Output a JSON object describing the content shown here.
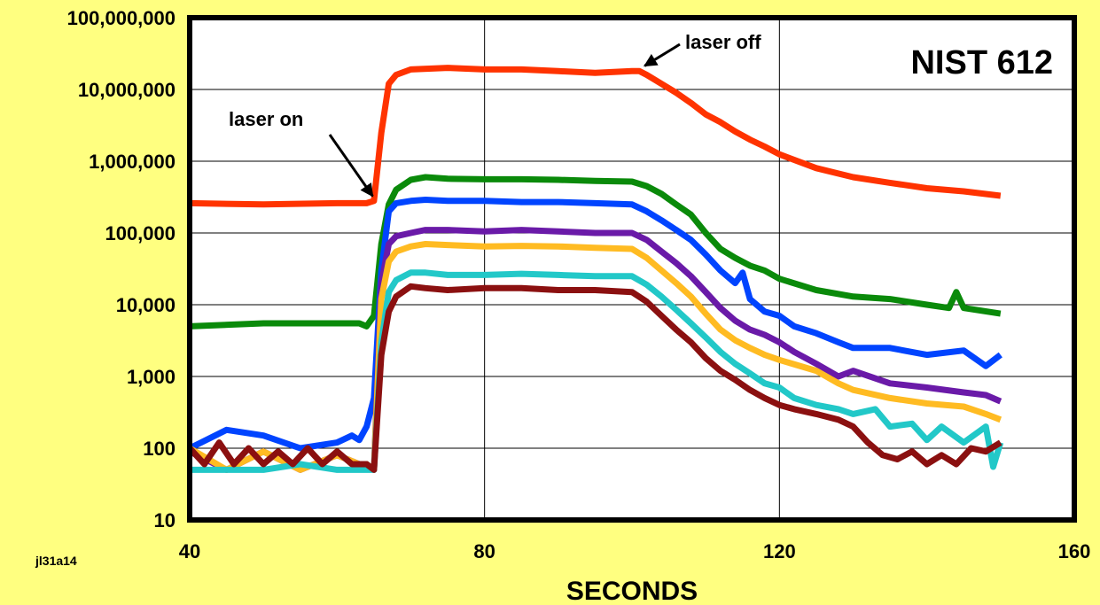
{
  "chart_data": {
    "type": "line",
    "title": "NIST 612",
    "xlabel": "SECONDS",
    "ylabel": "",
    "corner_label": "jl31a14",
    "xlim": [
      40,
      160
    ],
    "ylim": [
      10,
      100000000
    ],
    "yscale": "log",
    "grid": true,
    "x_ticks": [
      {
        "value": 40,
        "label": "40"
      },
      {
        "value": 80,
        "label": "80"
      },
      {
        "value": 120,
        "label": "120"
      },
      {
        "value": 160,
        "label": "160"
      }
    ],
    "y_ticks": [
      {
        "value": 10,
        "label": "10"
      },
      {
        "value": 100,
        "label": "100"
      },
      {
        "value": 1000,
        "label": "1,000"
      },
      {
        "value": 10000,
        "label": "10,000"
      },
      {
        "value": 100000,
        "label": "100,000"
      },
      {
        "value": 1000000,
        "label": "1,000,000"
      },
      {
        "value": 10000000,
        "label": "10,000,000"
      },
      {
        "value": 100000000,
        "label": "100,000,000"
      }
    ],
    "annotations": [
      {
        "text": "laser on",
        "x": 65.3,
        "y": 260000
      },
      {
        "text": "laser off",
        "x": 101,
        "y": 18000000
      }
    ],
    "series": [
      {
        "color": "#ff3300",
        "x": [
          40,
          50,
          60,
          64,
          65,
          66,
          67,
          68,
          70,
          75,
          80,
          85,
          90,
          95,
          100,
          101,
          102,
          104,
          106,
          108,
          110,
          112,
          114,
          116,
          118,
          120,
          125,
          130,
          135,
          140,
          145,
          150
        ],
        "y": [
          260000,
          250000,
          260000,
          260000,
          280000,
          2500000,
          12000000,
          16000000,
          19000000,
          20000000,
          19000000,
          19000000,
          18000000,
          17000000,
          18000000,
          18000000,
          16000000,
          12000000,
          9000000,
          6500000,
          4500000,
          3500000,
          2600000,
          2000000,
          1600000,
          1250000,
          800000,
          600000,
          500000,
          420000,
          380000,
          330000
        ]
      },
      {
        "color": "#0a8a0a",
        "x": [
          40,
          50,
          60,
          63,
          64,
          65,
          66,
          67,
          68,
          70,
          72,
          75,
          80,
          85,
          90,
          95,
          100,
          102,
          104,
          106,
          108,
          110,
          112,
          114,
          116,
          118,
          120,
          125,
          130,
          135,
          140,
          143,
          144,
          145,
          150
        ],
        "y": [
          5000,
          5500,
          5500,
          5500,
          5000,
          7000,
          70000,
          250000,
          400000,
          550000,
          600000,
          570000,
          560000,
          560000,
          550000,
          530000,
          520000,
          450000,
          350000,
          250000,
          180000,
          100000,
          60000,
          45000,
          35000,
          30000,
          23000,
          16000,
          13000,
          12000,
          10000,
          9000,
          15000,
          9000,
          7500
        ]
      },
      {
        "color": "#0044ff",
        "x": [
          40,
          45,
          50,
          55,
          60,
          62,
          63,
          64,
          65,
          66,
          67,
          68,
          70,
          72,
          75,
          80,
          85,
          90,
          95,
          100,
          102,
          104,
          106,
          108,
          110,
          112,
          114,
          115,
          116,
          118,
          120,
          122,
          125,
          128,
          130,
          135,
          140,
          145,
          148,
          150
        ],
        "y": [
          100,
          180,
          150,
          100,
          120,
          150,
          130,
          200,
          500,
          30000,
          200000,
          260000,
          280000,
          290000,
          280000,
          280000,
          270000,
          270000,
          260000,
          250000,
          200000,
          150000,
          110000,
          80000,
          50000,
          30000,
          20000,
          28000,
          12000,
          8000,
          7000,
          5000,
          4000,
          3000,
          2500,
          2500,
          2000,
          2300,
          1400,
          2000
        ]
      },
      {
        "color": "#6a1aa8",
        "x": [
          40,
          45,
          50,
          55,
          60,
          63,
          64,
          65,
          66,
          67,
          68,
          70,
          72,
          75,
          80,
          85,
          90,
          95,
          100,
          102,
          104,
          106,
          108,
          110,
          112,
          114,
          116,
          118,
          120,
          122,
          125,
          128,
          130,
          135,
          140,
          145,
          148,
          150
        ],
        "y": [
          90,
          50,
          90,
          50,
          80,
          60,
          60,
          50,
          20000,
          70000,
          90000,
          100000,
          110000,
          110000,
          105000,
          110000,
          105000,
          100000,
          100000,
          80000,
          55000,
          38000,
          25000,
          15000,
          9000,
          6000,
          4500,
          3800,
          3000,
          2200,
          1500,
          1000,
          1200,
          800,
          700,
          600,
          550,
          450
        ]
      },
      {
        "color": "#ffbb22",
        "x": [
          40,
          45,
          50,
          55,
          60,
          63,
          64,
          65,
          66,
          67,
          68,
          70,
          72,
          75,
          80,
          85,
          90,
          95,
          100,
          102,
          104,
          106,
          108,
          110,
          112,
          114,
          116,
          118,
          120,
          125,
          128,
          130,
          135,
          140,
          145,
          148,
          150
        ],
        "y": [
          100,
          50,
          90,
          50,
          80,
          60,
          60,
          50,
          12000,
          40000,
          55000,
          65000,
          70000,
          68000,
          65000,
          66000,
          65000,
          62000,
          60000,
          45000,
          30000,
          20000,
          13000,
          7500,
          4500,
          3200,
          2500,
          2000,
          1700,
          1200,
          800,
          650,
          500,
          420,
          380,
          300,
          250
        ]
      },
      {
        "color": "#22c8c8",
        "x": [
          40,
          45,
          50,
          55,
          60,
          63,
          64,
          65,
          66,
          67,
          68,
          70,
          72,
          75,
          80,
          85,
          90,
          95,
          100,
          102,
          104,
          106,
          108,
          110,
          112,
          114,
          116,
          118,
          120,
          122,
          125,
          128,
          130,
          133,
          135,
          138,
          140,
          142,
          145,
          148,
          149,
          150
        ],
        "y": [
          50,
          50,
          50,
          60,
          50,
          50,
          50,
          50,
          3000,
          15000,
          22000,
          28000,
          28000,
          26000,
          26000,
          27000,
          26000,
          25000,
          25000,
          19000,
          13000,
          8500,
          5500,
          3500,
          2200,
          1500,
          1100,
          800,
          700,
          500,
          400,
          350,
          300,
          350,
          200,
          220,
          130,
          200,
          120,
          200,
          55,
          120
        ]
      },
      {
        "color": "#8b1010",
        "x": [
          40,
          42,
          44,
          46,
          48,
          50,
          52,
          54,
          56,
          58,
          60,
          62,
          64,
          65,
          66,
          67,
          68,
          70,
          72,
          75,
          80,
          85,
          90,
          95,
          100,
          102,
          104,
          106,
          108,
          110,
          112,
          114,
          116,
          118,
          120,
          122,
          125,
          128,
          130,
          132,
          134,
          136,
          138,
          140,
          142,
          144,
          146,
          148,
          150
        ],
        "y": [
          100,
          60,
          120,
          60,
          100,
          60,
          90,
          60,
          100,
          60,
          90,
          60,
          60,
          50,
          2000,
          8000,
          13000,
          18000,
          17000,
          16000,
          17000,
          17000,
          16000,
          16000,
          15000,
          11000,
          7000,
          4500,
          3000,
          1800,
          1200,
          900,
          650,
          500,
          400,
          350,
          300,
          250,
          200,
          120,
          80,
          70,
          90,
          60,
          80,
          60,
          100,
          90,
          120
        ]
      }
    ]
  }
}
